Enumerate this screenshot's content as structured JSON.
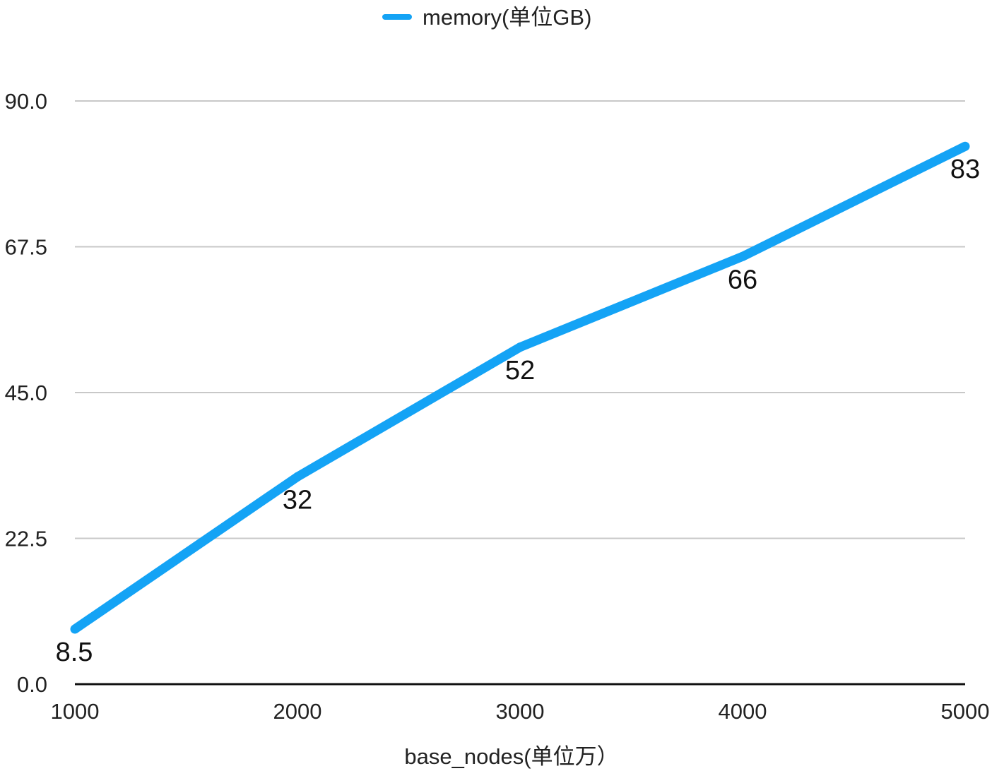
{
  "chart_data": {
    "type": "line",
    "title": "",
    "xlabel": "base_nodes(单位万）",
    "ylabel": "",
    "categories": [
      "1000",
      "2000",
      "3000",
      "4000",
      "5000"
    ],
    "x": [
      1000,
      2000,
      3000,
      4000,
      5000
    ],
    "series": [
      {
        "name": "memory(单位GB)",
        "values": [
          8.5,
          32,
          52,
          66,
          83
        ],
        "color": "#14a3f5"
      }
    ],
    "data_labels": [
      "8.5",
      "32",
      "52",
      "66",
      "83"
    ],
    "xlim": [
      1000,
      5000
    ],
    "ylim": [
      0,
      90
    ],
    "y_ticks": [
      0,
      22.5,
      45,
      67.5,
      90
    ],
    "y_tick_labels": [
      "0.0",
      "22.5",
      "45.0",
      "67.5",
      "90.0"
    ],
    "x_tick_labels": [
      "1000",
      "2000",
      "3000",
      "4000",
      "5000"
    ],
    "grid": true,
    "legend_position": "top-center",
    "colors": {
      "line": "#14a3f5",
      "grid": "#c8c8c8",
      "axis": "#111111",
      "text": "#222222"
    }
  }
}
